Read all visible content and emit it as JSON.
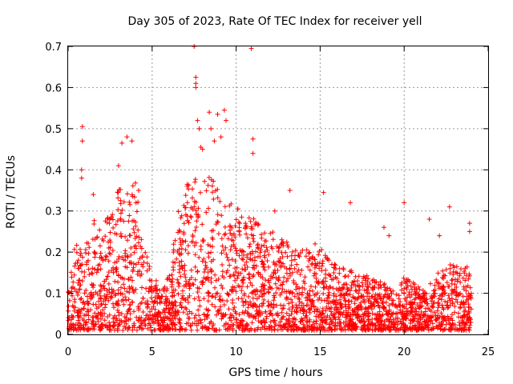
{
  "chart_data": {
    "type": "scatter",
    "title": "Day 305 of 2023, Rate Of TEC Index for receiver yell",
    "xlabel": "GPS time / hours",
    "ylabel": "ROTI / TECUs",
    "xlim": [
      0,
      25
    ],
    "ylim": [
      0,
      0.7
    ],
    "xticks": [
      "0",
      "5",
      "10",
      "15",
      "20",
      "25"
    ],
    "yticks": [
      "0",
      "0.1",
      "0.2",
      "0.3",
      "0.4",
      "0.5",
      "0.6",
      "0.7"
    ],
    "grid": true,
    "marker": "plus",
    "color": "#ff0000",
    "envelope": [
      {
        "x": 0.0,
        "y": 0.13
      },
      {
        "x": 0.5,
        "y": 0.22
      },
      {
        "x": 1.0,
        "y": 0.2
      },
      {
        "x": 1.5,
        "y": 0.3
      },
      {
        "x": 2.0,
        "y": 0.25
      },
      {
        "x": 2.5,
        "y": 0.3
      },
      {
        "x": 3.0,
        "y": 0.35
      },
      {
        "x": 3.5,
        "y": 0.33
      },
      {
        "x": 4.0,
        "y": 0.37
      },
      {
        "x": 4.5,
        "y": 0.2
      },
      {
        "x": 5.0,
        "y": 0.15
      },
      {
        "x": 5.5,
        "y": 0.1
      },
      {
        "x": 6.0,
        "y": 0.13
      },
      {
        "x": 6.5,
        "y": 0.3
      },
      {
        "x": 7.0,
        "y": 0.35
      },
      {
        "x": 7.5,
        "y": 0.38
      },
      {
        "x": 8.0,
        "y": 0.4
      },
      {
        "x": 8.5,
        "y": 0.38
      },
      {
        "x": 9.0,
        "y": 0.36
      },
      {
        "x": 9.5,
        "y": 0.33
      },
      {
        "x": 10.0,
        "y": 0.3
      },
      {
        "x": 10.5,
        "y": 0.28
      },
      {
        "x": 11.0,
        "y": 0.28
      },
      {
        "x": 11.5,
        "y": 0.25
      },
      {
        "x": 12.0,
        "y": 0.25
      },
      {
        "x": 12.5,
        "y": 0.22
      },
      {
        "x": 13.0,
        "y": 0.22
      },
      {
        "x": 13.5,
        "y": 0.2
      },
      {
        "x": 14.0,
        "y": 0.2
      },
      {
        "x": 14.5,
        "y": 0.19
      },
      {
        "x": 15.0,
        "y": 0.2
      },
      {
        "x": 15.5,
        "y": 0.18
      },
      {
        "x": 16.0,
        "y": 0.16
      },
      {
        "x": 16.5,
        "y": 0.15
      },
      {
        "x": 17.0,
        "y": 0.15
      },
      {
        "x": 17.5,
        "y": 0.14
      },
      {
        "x": 18.0,
        "y": 0.13
      },
      {
        "x": 18.5,
        "y": 0.12
      },
      {
        "x": 19.0,
        "y": 0.11
      },
      {
        "x": 19.5,
        "y": 0.1
      },
      {
        "x": 20.0,
        "y": 0.13
      },
      {
        "x": 20.5,
        "y": 0.12
      },
      {
        "x": 21.0,
        "y": 0.1
      },
      {
        "x": 21.5,
        "y": 0.11
      },
      {
        "x": 22.0,
        "y": 0.14
      },
      {
        "x": 22.5,
        "y": 0.15
      },
      {
        "x": 23.0,
        "y": 0.17
      },
      {
        "x": 23.5,
        "y": 0.16
      },
      {
        "x": 24.0,
        "y": 0.15
      }
    ],
    "outliers": [
      {
        "x": 0.85,
        "y": 0.505
      },
      {
        "x": 0.85,
        "y": 0.47
      },
      {
        "x": 0.8,
        "y": 0.4
      },
      {
        "x": 0.8,
        "y": 0.38
      },
      {
        "x": 1.5,
        "y": 0.34
      },
      {
        "x": 3.2,
        "y": 0.465
      },
      {
        "x": 3.5,
        "y": 0.48
      },
      {
        "x": 3.8,
        "y": 0.47
      },
      {
        "x": 3.0,
        "y": 0.41
      },
      {
        "x": 4.2,
        "y": 0.35
      },
      {
        "x": 7.5,
        "y": 0.7
      },
      {
        "x": 7.6,
        "y": 0.625
      },
      {
        "x": 7.6,
        "y": 0.61
      },
      {
        "x": 7.6,
        "y": 0.6
      },
      {
        "x": 7.7,
        "y": 0.52
      },
      {
        "x": 7.8,
        "y": 0.5
      },
      {
        "x": 7.9,
        "y": 0.455
      },
      {
        "x": 8.0,
        "y": 0.45
      },
      {
        "x": 8.4,
        "y": 0.54
      },
      {
        "x": 8.5,
        "y": 0.5
      },
      {
        "x": 8.9,
        "y": 0.535
      },
      {
        "x": 9.3,
        "y": 0.545
      },
      {
        "x": 9.4,
        "y": 0.52
      },
      {
        "x": 10.9,
        "y": 0.695
      },
      {
        "x": 11.0,
        "y": 0.475
      },
      {
        "x": 11.0,
        "y": 0.44
      },
      {
        "x": 9.1,
        "y": 0.48
      },
      {
        "x": 8.7,
        "y": 0.47
      },
      {
        "x": 13.2,
        "y": 0.35
      },
      {
        "x": 15.2,
        "y": 0.345
      },
      {
        "x": 16.8,
        "y": 0.32
      },
      {
        "x": 18.8,
        "y": 0.26
      },
      {
        "x": 19.1,
        "y": 0.24
      },
      {
        "x": 20.0,
        "y": 0.32
      },
      {
        "x": 21.5,
        "y": 0.28
      },
      {
        "x": 22.7,
        "y": 0.31
      },
      {
        "x": 23.9,
        "y": 0.27
      },
      {
        "x": 23.9,
        "y": 0.25
      },
      {
        "x": 22.1,
        "y": 0.24
      },
      {
        "x": 12.3,
        "y": 0.3
      },
      {
        "x": 14.7,
        "y": 0.22
      }
    ],
    "density_points_per_hour": 120,
    "noise_seed": 305
  }
}
